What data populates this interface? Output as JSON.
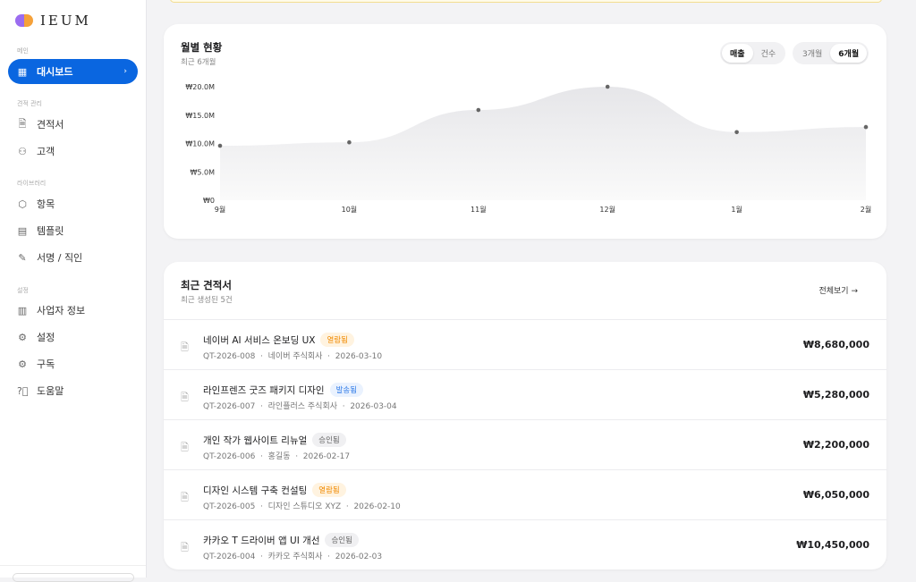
{
  "app": {
    "name": "IEUM"
  },
  "sidebar": {
    "sections": [
      {
        "label": "메인",
        "items": [
          {
            "label": "대시보드",
            "icon": "dashboard-icon",
            "active": true
          }
        ]
      },
      {
        "label": "견적 관리",
        "items": [
          {
            "label": "견적서",
            "icon": "document-icon"
          },
          {
            "label": "고객",
            "icon": "users-icon"
          }
        ]
      },
      {
        "label": "라이브러리",
        "items": [
          {
            "label": "항목",
            "icon": "box-icon"
          },
          {
            "label": "템플릿",
            "icon": "template-icon"
          },
          {
            "label": "서명 / 직인",
            "icon": "pen-icon"
          }
        ]
      },
      {
        "label": "설정",
        "items": [
          {
            "label": "사업자 정보",
            "icon": "building-icon"
          },
          {
            "label": "설정",
            "icon": "gear-icon"
          },
          {
            "label": "구독",
            "icon": "gear-icon"
          },
          {
            "label": "도움말",
            "icon": "help-icon"
          }
        ]
      }
    ]
  },
  "chart_card": {
    "title": "월별 현황",
    "subtitle": "최근 6개월",
    "metric_toggle": [
      "매출",
      "건수"
    ],
    "metric_selected": "매출",
    "range_toggle": [
      "3개월",
      "6개월"
    ],
    "range_selected": "6개월"
  },
  "chart_data": {
    "type": "area",
    "categories": [
      "9월",
      "10월",
      "11월",
      "12월",
      "1월",
      "2월"
    ],
    "values": [
      9.6,
      10.2,
      15.9,
      20.0,
      12.0,
      12.9
    ],
    "unit": "₩M",
    "yticks": [
      "₩0",
      "₩5.0M",
      "₩10.0M",
      "₩15.0M",
      "₩20.0M"
    ],
    "ylim": [
      0,
      20
    ],
    "grid": false,
    "color": "#e9e9ec",
    "point_color": "#666666"
  },
  "quotes": {
    "title": "최근 견적서",
    "subtitle": "최근 생성된 5건",
    "view_all": "전체보기",
    "items": [
      {
        "title": "네이버 AI 서비스 온보딩 UX",
        "status": "열람됨",
        "status_color": "#f08a00",
        "status_bg": "#fff3e0",
        "meta": "QT-2026-008  ·  네이버 주식회사  ·  2026-03-10",
        "amount": "₩8,680,000"
      },
      {
        "title": "라인프렌즈 굿즈 패키지 디자인",
        "status": "발송됨",
        "status_color": "#2f7be8",
        "status_bg": "#eaf2fe",
        "meta": "QT-2026-007  ·  라인플러스 주식회사  ·  2026-03-04",
        "amount": "₩5,280,000"
      },
      {
        "title": "개인 작가 웹사이트 리뉴얼",
        "status": "승인됨",
        "status_color": "#666666",
        "status_bg": "#f0f0f2",
        "meta": "QT-2026-006  ·  홍길동  ·  2026-02-17",
        "amount": "₩2,200,000"
      },
      {
        "title": "디자인 시스템 구축 컨설팅",
        "status": "열람됨",
        "status_color": "#f08a00",
        "status_bg": "#fff3e0",
        "meta": "QT-2026-005  ·  디자인 스튜디오 XYZ  ·  2026-02-10",
        "amount": "₩6,050,000"
      },
      {
        "title": "카카오 T 드라이버 앱 UI 개선",
        "status": "승인됨",
        "status_color": "#666666",
        "status_bg": "#f0f0f2",
        "meta": "QT-2026-004  ·  카카오 주식회사  ·  2026-02-03",
        "amount": "₩10,450,000"
      }
    ]
  }
}
